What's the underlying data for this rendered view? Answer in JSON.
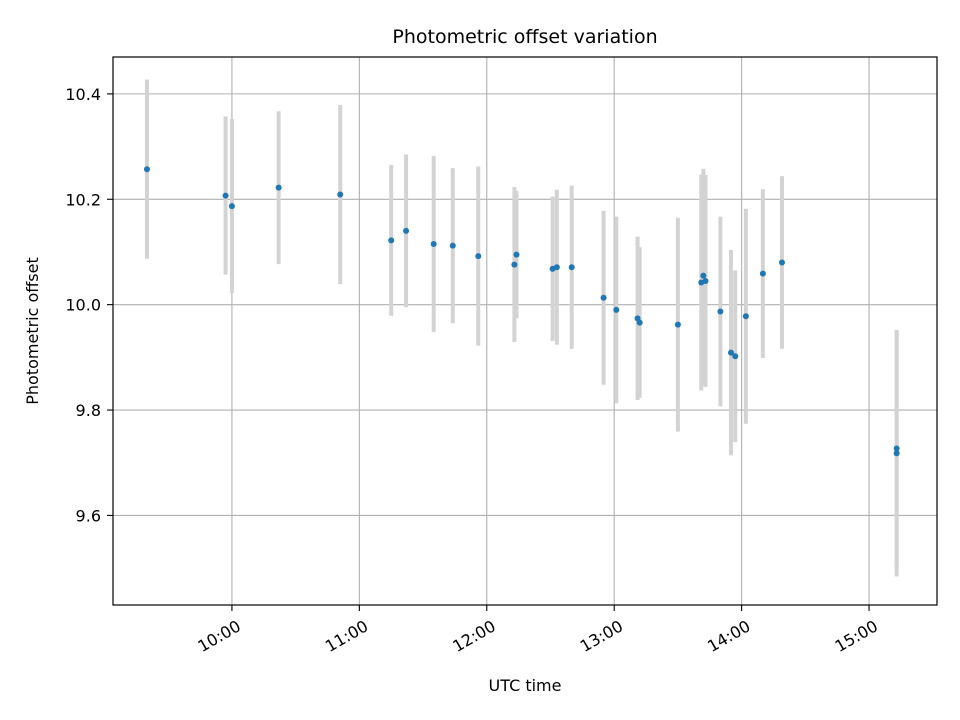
{
  "chart_data": {
    "type": "scatter",
    "title": "Photometric offset variation",
    "xlabel": "UTC time",
    "ylabel": "Photometric offset",
    "xlim": [
      "09:04",
      "15:32"
    ],
    "ylim": [
      9.43,
      10.47
    ],
    "x_ticks": [
      "10:00",
      "11:00",
      "12:00",
      "13:00",
      "14:00",
      "15:00"
    ],
    "y_ticks": [
      "9.6",
      "9.8",
      "10.0",
      "10.2",
      "10.4"
    ],
    "grid": true,
    "colors": {
      "points": "#1f77b4",
      "error_bars": "#d3d3d3",
      "grid": "#b0b0b0",
      "axes": "#000000"
    },
    "points": [
      {
        "x": "09:20",
        "y": 10.257,
        "yerr_low": 10.087,
        "yerr_high": 10.427
      },
      {
        "x": "09:57",
        "y": 10.207,
        "yerr_low": 10.057,
        "yerr_high": 10.357
      },
      {
        "x": "10:00",
        "y": 10.187,
        "yerr_low": 10.022,
        "yerr_high": 10.352
      },
      {
        "x": "10:22",
        "y": 10.222,
        "yerr_low": 10.077,
        "yerr_high": 10.367
      },
      {
        "x": "10:51",
        "y": 10.209,
        "yerr_low": 10.039,
        "yerr_high": 10.379
      },
      {
        "x": "11:15",
        "y": 10.122,
        "yerr_low": 9.979,
        "yerr_high": 10.265
      },
      {
        "x": "11:22",
        "y": 10.14,
        "yerr_low": 9.995,
        "yerr_high": 10.285
      },
      {
        "x": "11:35",
        "y": 10.115,
        "yerr_low": 9.948,
        "yerr_high": 10.282
      },
      {
        "x": "11:44",
        "y": 10.112,
        "yerr_low": 9.965,
        "yerr_high": 10.259
      },
      {
        "x": "11:56",
        "y": 10.092,
        "yerr_low": 9.922,
        "yerr_high": 10.262
      },
      {
        "x": "12:13",
        "y": 10.076,
        "yerr_low": 9.929,
        "yerr_high": 10.223
      },
      {
        "x": "12:14",
        "y": 10.095,
        "yerr_low": 9.974,
        "yerr_high": 10.216
      },
      {
        "x": "12:31",
        "y": 10.068,
        "yerr_low": 9.931,
        "yerr_high": 10.205
      },
      {
        "x": "12:33",
        "y": 10.071,
        "yerr_low": 9.924,
        "yerr_high": 10.218
      },
      {
        "x": "12:40",
        "y": 10.071,
        "yerr_low": 9.916,
        "yerr_high": 10.226
      },
      {
        "x": "12:55",
        "y": 10.013,
        "yerr_low": 9.848,
        "yerr_high": 10.178
      },
      {
        "x": "13:01",
        "y": 9.99,
        "yerr_low": 9.813,
        "yerr_high": 10.167
      },
      {
        "x": "13:11",
        "y": 9.974,
        "yerr_low": 9.819,
        "yerr_high": 10.129
      },
      {
        "x": "13:12",
        "y": 9.966,
        "yerr_low": 9.823,
        "yerr_high": 10.109
      },
      {
        "x": "13:30",
        "y": 9.962,
        "yerr_low": 9.759,
        "yerr_high": 10.165
      },
      {
        "x": "13:41",
        "y": 10.042,
        "yerr_low": 9.837,
        "yerr_high": 10.247
      },
      {
        "x": "13:42",
        "y": 10.055,
        "yerr_low": 9.848,
        "yerr_high": 10.258
      },
      {
        "x": "13:43",
        "y": 10.045,
        "yerr_low": 9.844,
        "yerr_high": 10.246
      },
      {
        "x": "13:50",
        "y": 9.987,
        "yerr_low": 9.807,
        "yerr_high": 10.167
      },
      {
        "x": "13:55",
        "y": 9.909,
        "yerr_low": 9.714,
        "yerr_high": 10.104
      },
      {
        "x": "13:57",
        "y": 9.902,
        "yerr_low": 9.739,
        "yerr_high": 10.065
      },
      {
        "x": "14:02",
        "y": 9.978,
        "yerr_low": 9.774,
        "yerr_high": 10.182
      },
      {
        "x": "14:10",
        "y": 10.059,
        "yerr_low": 9.899,
        "yerr_high": 10.219
      },
      {
        "x": "14:19",
        "y": 10.08,
        "yerr_low": 9.916,
        "yerr_high": 10.244
      },
      {
        "x": "15:13",
        "y": 9.727,
        "yerr_low": 9.502,
        "yerr_high": 9.952
      },
      {
        "x": "15:13",
        "y": 9.718,
        "yerr_low": 9.484,
        "yerr_high": 9.952
      }
    ]
  }
}
